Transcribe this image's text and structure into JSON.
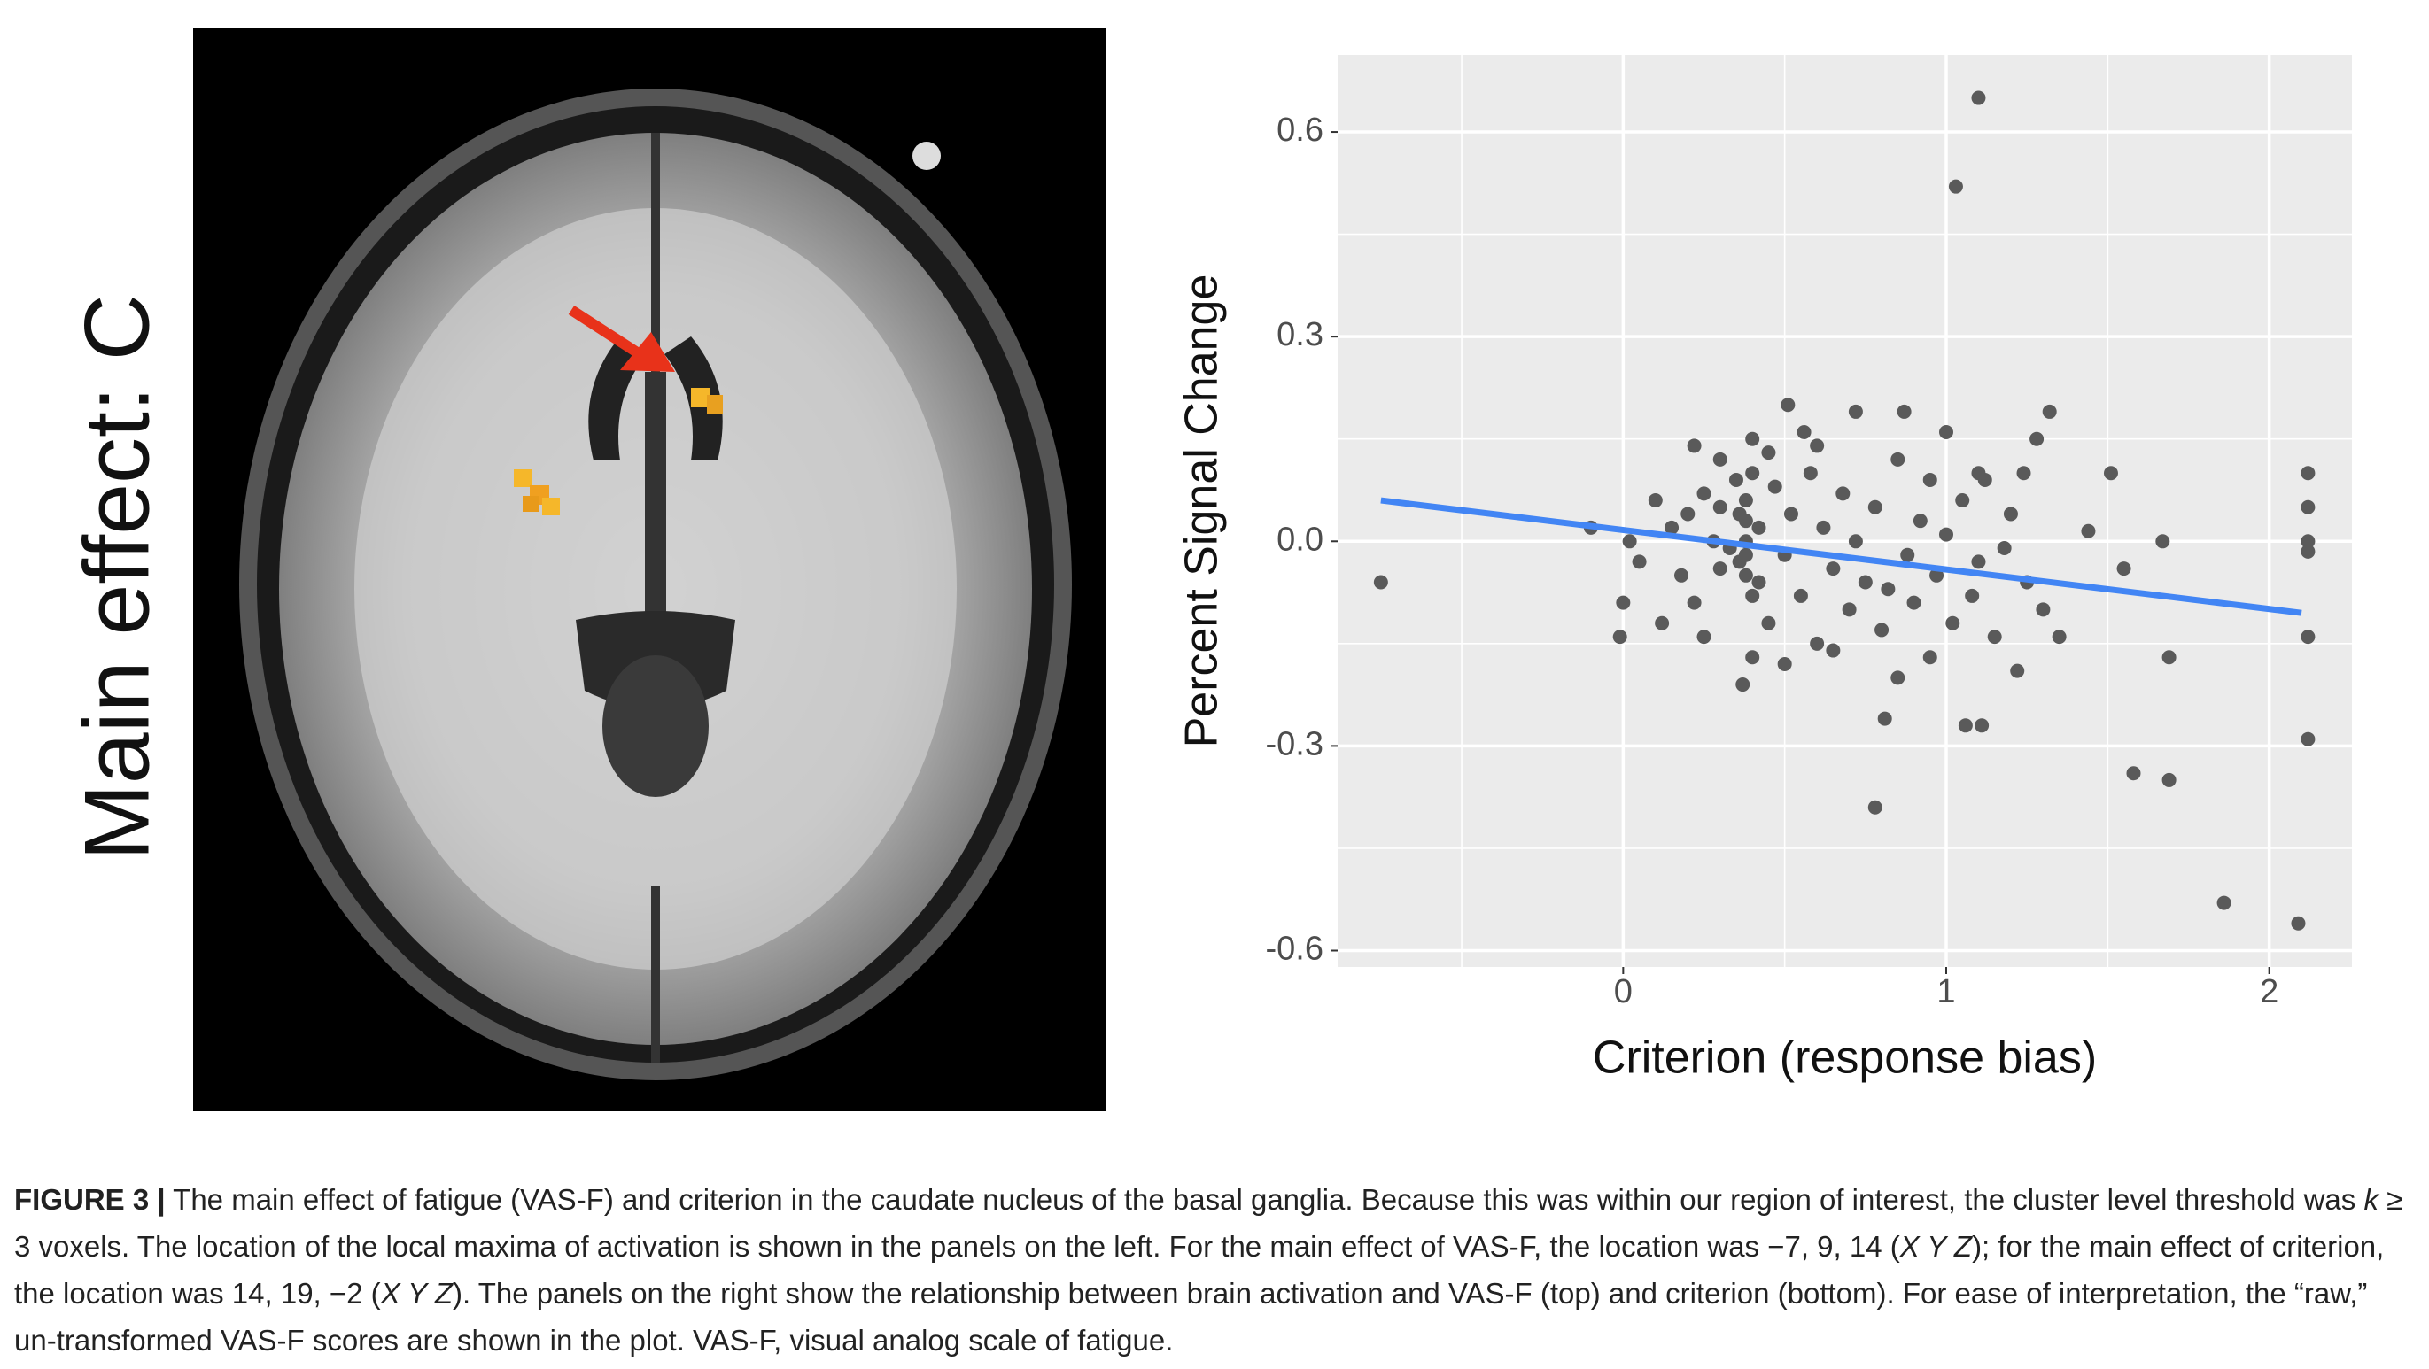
{
  "panel_label": "Main effect:  C",
  "chart_data": {
    "type": "scatter",
    "xlabel": "Criterion (response bias)",
    "ylabel": "Percent Signal Change",
    "xlim": [
      -0.884,
      2.256
    ],
    "ylim": [
      -0.624,
      0.713
    ],
    "xticks": [
      0,
      1,
      2
    ],
    "yticks": [
      0.6,
      0.3,
      {
        "value": 0,
        "label": "0.0"
      },
      -0.3,
      -0.6
    ],
    "x_minor_grid": [
      -0.5,
      0.5,
      1.5
    ],
    "y_minor_grid": [
      0.45,
      0.15,
      -0.15,
      -0.45
    ],
    "grid": true,
    "color": "#5a5a5a",
    "x": [
      -0.75,
      1.1,
      1.03,
      0.78,
      1.86,
      2.09,
      1.58,
      1.69,
      2.12,
      2.12,
      2.12,
      2.12,
      2.12,
      2.12,
      1.67,
      1.69,
      1.55,
      1.51,
      1.44,
      1.32,
      0.81,
      1.06,
      1.11,
      0.37,
      -0.1,
      -0.01,
      0.51,
      0.72,
      0.87,
      1.0,
      1.28,
      1.24,
      0.56,
      0.22,
      0.38,
      0.38,
      0.38,
      0.38,
      0.38,
      0.4,
      0.4,
      0.36,
      0.36,
      0.42,
      0.42,
      0.35,
      0.33,
      0.3,
      0.3,
      0.28,
      0.25,
      0.22,
      0.2,
      0.18,
      0.15,
      0.12,
      0.1,
      0.05,
      0.0,
      0.02,
      0.45,
      0.47,
      0.5,
      0.52,
      0.55,
      0.58,
      0.6,
      0.62,
      0.65,
      0.68,
      0.7,
      0.72,
      0.75,
      0.78,
      0.8,
      0.82,
      0.85,
      0.88,
      0.9,
      0.92,
      0.95,
      0.97,
      1.0,
      1.02,
      1.05,
      1.08,
      1.1,
      1.12,
      1.15,
      1.18,
      1.2,
      1.22,
      1.25,
      1.3,
      1.35,
      0.45,
      0.4,
      0.25,
      0.6,
      0.85,
      0.95,
      1.1,
      0.5,
      0.65,
      0.4,
      0.3
    ],
    "values": [
      -0.06,
      0.65,
      0.52,
      -0.39,
      -0.53,
      -0.56,
      -0.34,
      -0.35,
      -0.29,
      -0.14,
      0.1,
      0.05,
      0.0,
      -0.015,
      0.0,
      -0.17,
      -0.04,
      0.1,
      0.015,
      0.19,
      -0.26,
      -0.27,
      -0.27,
      -0.21,
      0.02,
      -0.14,
      0.2,
      0.19,
      0.19,
      0.16,
      0.15,
      0.1,
      0.16,
      0.14,
      0.0,
      -0.02,
      0.03,
      -0.05,
      0.06,
      -0.08,
      0.1,
      0.04,
      -0.03,
      0.02,
      -0.06,
      0.09,
      -0.01,
      0.05,
      -0.04,
      0.0,
      0.07,
      -0.09,
      0.04,
      -0.05,
      0.02,
      -0.12,
      0.06,
      -0.03,
      -0.09,
      0.0,
      -0.12,
      0.08,
      -0.02,
      0.04,
      -0.08,
      0.1,
      -0.15,
      0.02,
      -0.04,
      0.07,
      -0.1,
      0.0,
      -0.06,
      0.05,
      -0.13,
      -0.07,
      0.12,
      -0.02,
      -0.09,
      0.03,
      -0.17,
      -0.05,
      0.01,
      -0.12,
      0.06,
      -0.08,
      -0.03,
      0.09,
      -0.14,
      -0.01,
      0.04,
      -0.19,
      -0.06,
      -0.1,
      -0.14,
      0.13,
      -0.17,
      -0.14,
      0.14,
      -0.2,
      0.09,
      0.1,
      -0.18,
      -0.16,
      0.15,
      0.12
    ],
    "trend_line": {
      "x": [
        -0.75,
        2.1
      ],
      "y": [
        0.06,
        -0.105
      ],
      "color": "#4285f4"
    }
  },
  "caption": {
    "segments": [
      {
        "text": "FIGURE 3 |",
        "style": "bold"
      },
      {
        "text": " The main effect of fatigue (VAS-F) and criterion in the caudate nucleus of the basal ganglia. Because this was within our region of interest, the cluster level threshold was ",
        "style": "normal"
      },
      {
        "text": "k",
        "style": "italic"
      },
      {
        "text": " ≥ 3 voxels. The location of the local maxima of activation is shown in the panels on the left. For the main effect of VAS-F, the location was −7, 9, 14 (",
        "style": "normal"
      },
      {
        "text": "X Y Z",
        "style": "italic"
      },
      {
        "text": "); for the main effect of criterion, the location was 14, 19, −2 (",
        "style": "normal"
      },
      {
        "text": "X Y Z",
        "style": "italic"
      },
      {
        "text": "). The panels on the right show the relationship between brain activation and VAS-F (top) and criterion (bottom). For ease of interpretation, the “raw,” un-transformed VAS-F scores are shown in the plot. VAS-F, visual analog scale of fatigue.",
        "style": "normal"
      }
    ]
  }
}
